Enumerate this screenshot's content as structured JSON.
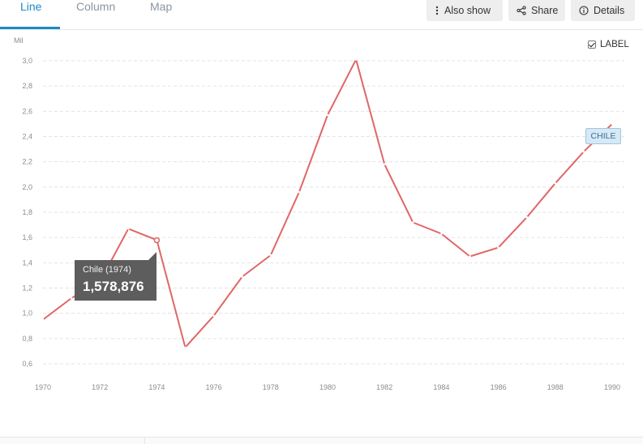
{
  "tabs": [
    {
      "label": "Line",
      "active": true
    },
    {
      "label": "Column",
      "active": false
    },
    {
      "label": "Map",
      "active": false
    }
  ],
  "actions": {
    "also_show": "Also show",
    "share": "Share",
    "details": "Details"
  },
  "label_toggle": {
    "text": "LABEL",
    "checked": true
  },
  "series_tag": "CHILE",
  "tooltip": {
    "title": "Chile (1974)",
    "value": "1,578,876"
  },
  "colors": {
    "line": "#e06666",
    "accent": "#1a8ac6",
    "tooltip_bg": "#5d5d5d"
  },
  "icons": [
    "dots-vertical-icon",
    "share-icon",
    "info-icon",
    "checkbox-icon"
  ],
  "chart_data": {
    "type": "line",
    "unit_label": "Mil",
    "x": [
      1970,
      1971,
      1972,
      1973,
      1974,
      1975,
      1976,
      1977,
      1978,
      1979,
      1980,
      1981,
      1982,
      1983,
      1984,
      1985,
      1986,
      1987,
      1988,
      1989,
      1990
    ],
    "series": [
      {
        "name": "CHILE",
        "values": [
          0.95,
          1.12,
          1.25,
          1.67,
          1.58,
          0.73,
          0.98,
          1.29,
          1.46,
          1.96,
          2.57,
          3.01,
          2.18,
          1.72,
          1.63,
          1.45,
          1.52,
          1.76,
          2.03,
          2.28,
          2.5
        ]
      }
    ],
    "y_ticks": [
      "0,6",
      "0,8",
      "1,0",
      "1,2",
      "1,4",
      "1,6",
      "1,8",
      "2,0",
      "2,2",
      "2,4",
      "2,6",
      "2,8",
      "3,0"
    ],
    "x_ticks": [
      "1970",
      "1972",
      "1974",
      "1976",
      "1978",
      "1980",
      "1982",
      "1984",
      "1986",
      "1988",
      "1990"
    ],
    "ylim": [
      0.6,
      3.0
    ],
    "xlim": [
      1970,
      1990
    ],
    "highlight": {
      "x": 1974,
      "value": 1.578876
    },
    "grid": true
  }
}
